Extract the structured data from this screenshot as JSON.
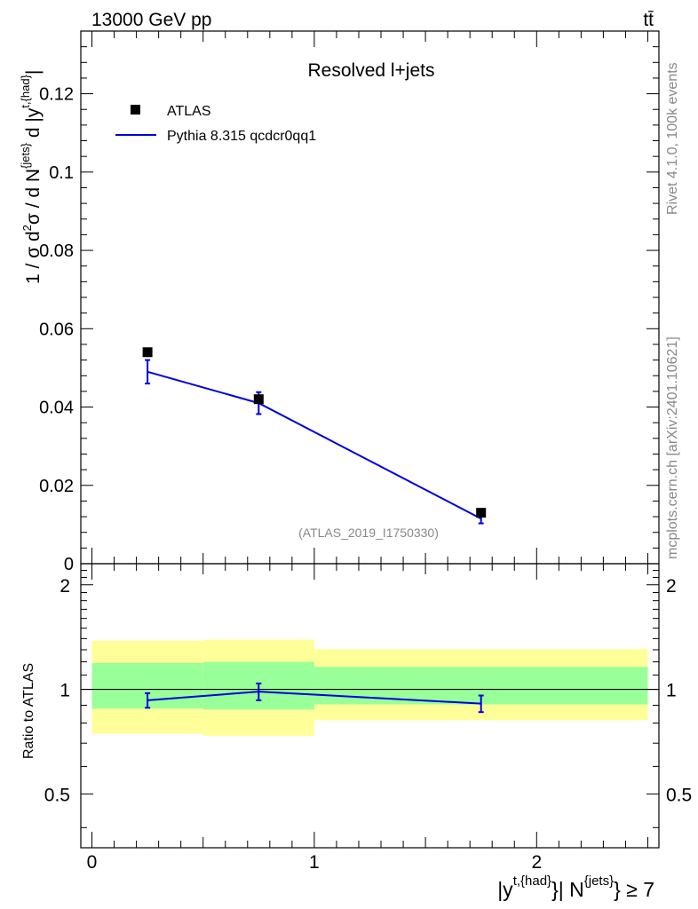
{
  "header": {
    "left": "13000 GeV pp",
    "right": "tt̄"
  },
  "side_labels": {
    "rivet": "Rivet 4.1.0,  100k events",
    "mcplots": "mcplots.cern.ch [arXiv:2401.10621]"
  },
  "chart_data": {
    "type": "line",
    "title": "Resolved l+jets",
    "analysis_id": "(ATLAS_2019_I1750330)",
    "xlabel": "|y^{t,{had}}| N^{jets} ≥ 7",
    "ylabel": "1 / σ d²σ / d N^{jets} d |y^{t,{had}}|",
    "xlim": [
      -0.05,
      2.55
    ],
    "ylim": [
      0,
      0.136
    ],
    "x_ticks": [
      0,
      1,
      2
    ],
    "y_ticks": [
      0,
      0.02,
      0.04,
      0.06,
      0.08,
      0.1,
      0.12
    ],
    "y_tick_labels": [
      "0",
      "0.02",
      "0.04",
      "0.06",
      "0.08",
      "0.1",
      "0.12"
    ],
    "legend": [
      {
        "label": "ATLAS",
        "marker": "square",
        "color": "#000000"
      },
      {
        "label": "Pythia 8.315 qcdcr0qq1",
        "marker": "line",
        "color": "#0000dd"
      }
    ],
    "atlas": {
      "x": [
        0.25,
        0.75,
        1.75
      ],
      "y": [
        0.054,
        0.042,
        0.013
      ]
    },
    "pythia": {
      "x": [
        0.25,
        0.75,
        1.75
      ],
      "y": [
        0.049,
        0.041,
        0.0115
      ],
      "err": [
        0.003,
        0.0028,
        0.0012
      ]
    },
    "ratio": {
      "ylabel": "Ratio to ATLAS",
      "ylim": [
        0.35,
        2.3
      ],
      "y_ticks": [
        0.5,
        1,
        2
      ],
      "y_tick_labels": [
        "0.5",
        "1",
        "2"
      ],
      "bins": [
        [
          0,
          0.5
        ],
        [
          0.5,
          1.0
        ],
        [
          1.0,
          2.5
        ]
      ],
      "band_inner": [
        [
          0.88,
          1.19
        ],
        [
          0.875,
          1.2
        ],
        [
          0.905,
          1.16
        ]
      ],
      "band_outer": [
        [
          0.745,
          1.38
        ],
        [
          0.735,
          1.39
        ],
        [
          0.815,
          1.305
        ]
      ],
      "pythia_x": [
        0.25,
        0.75,
        1.75
      ],
      "pythia_y": [
        0.93,
        0.985,
        0.91
      ],
      "pythia_err": [
        0.045,
        0.055,
        0.05
      ]
    }
  }
}
